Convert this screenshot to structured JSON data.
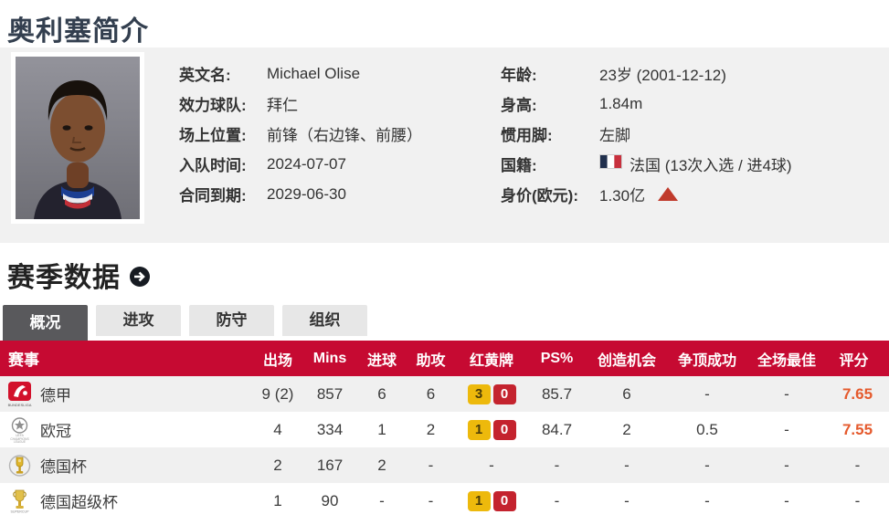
{
  "page": {
    "title": "奥利塞简介"
  },
  "profile": {
    "photo": "Michael Olise portrait",
    "left": [
      {
        "label": "英文名:",
        "value": "Michael Olise"
      },
      {
        "label": "效力球队:",
        "value": "拜仁"
      },
      {
        "label": "场上位置:",
        "value": "前锋（右边锋、前腰）"
      },
      {
        "label": "入队时间:",
        "value": "2024-07-07"
      },
      {
        "label": "合同到期:",
        "value": "2029-06-30"
      }
    ],
    "right": [
      {
        "label": "年龄:",
        "value": "23岁 (2001-12-12)"
      },
      {
        "label": "身高:",
        "value": "1.84m"
      },
      {
        "label": "惯用脚:",
        "value": "左脚"
      },
      {
        "label": "国籍:",
        "value": "法国 (13次入选 / 进4球)",
        "icon": "france-flag-icon"
      },
      {
        "label": "身价(欧元):",
        "value": "1.30亿",
        "trend": "up"
      }
    ]
  },
  "season": {
    "title": "赛季数据",
    "tabs": [
      {
        "label": "概况",
        "active": true
      },
      {
        "label": "进攻",
        "active": false
      },
      {
        "label": "防守",
        "active": false
      },
      {
        "label": "组织",
        "active": false
      }
    ],
    "table": {
      "headers": [
        "赛事",
        "出场",
        "Mins",
        "进球",
        "助攻",
        "红黄牌",
        "PS%",
        "创造机会",
        "争顶成功",
        "全场最佳",
        "评分"
      ],
      "rows": [
        {
          "competition": "德甲",
          "icon": "bundesliga-icon",
          "apps": "9 (2)",
          "mins": "857",
          "goals": "6",
          "assists": "6",
          "yellow": "3",
          "red": "0",
          "ps": "85.7",
          "chances": "6",
          "aerials": "-",
          "motm": "-",
          "rating": "7.65"
        },
        {
          "competition": "欧冠",
          "icon": "champions-league-icon",
          "apps": "4",
          "mins": "334",
          "goals": "1",
          "assists": "2",
          "yellow": "1",
          "red": "0",
          "ps": "84.7",
          "chances": "2",
          "aerials": "0.5",
          "motm": "-",
          "rating": "7.55"
        },
        {
          "competition": "德国杯",
          "icon": "german-cup-icon",
          "apps": "2",
          "mins": "167",
          "goals": "2",
          "assists": "-",
          "yellow": null,
          "red": null,
          "ps": "-",
          "chances": "-",
          "aerials": "-",
          "motm": "-",
          "rating": "-"
        },
        {
          "competition": "德国超级杯",
          "icon": "german-supercup-icon",
          "apps": "1",
          "mins": "90",
          "goals": "-",
          "assists": "-",
          "yellow": "1",
          "red": "0",
          "ps": "-",
          "chances": "-",
          "aerials": "-",
          "motm": "-",
          "rating": "-"
        }
      ]
    }
  },
  "colors": {
    "header_red": "#c60a32",
    "rating_orange": "#e55a2d",
    "card_yellow": "#edb90c",
    "card_red": "#c4232e",
    "tab_active_bg": "#59595c",
    "panel_gray": "#f1f1f1",
    "title_navy": "#333f4f"
  }
}
